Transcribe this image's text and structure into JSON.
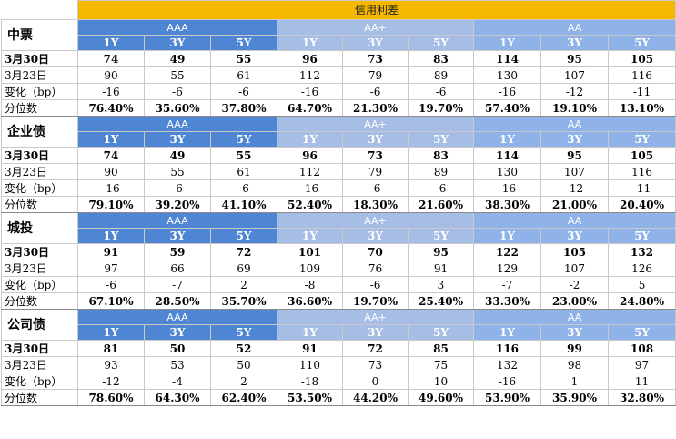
{
  "title": "信用利差",
  "ratings": [
    "AAA",
    "AA+",
    "AA"
  ],
  "tenors": [
    "1Y",
    "3Y",
    "5Y"
  ],
  "row_labels": {
    "current": "3月30日",
    "previous": "3月23日",
    "change": "变化（bp）",
    "percentile": "分位数"
  },
  "sections": [
    {
      "name": "中票",
      "current": [
        "74",
        "49",
        "55",
        "96",
        "73",
        "83",
        "114",
        "95",
        "105"
      ],
      "previous": [
        "90",
        "55",
        "61",
        "112",
        "79",
        "89",
        "130",
        "107",
        "116"
      ],
      "change": [
        "-16",
        "-6",
        "-6",
        "-16",
        "-6",
        "-6",
        "-16",
        "-12",
        "-11"
      ],
      "percentile": [
        "76.40%",
        "35.60%",
        "37.80%",
        "64.70%",
        "21.30%",
        "19.70%",
        "57.40%",
        "19.10%",
        "13.10%"
      ]
    },
    {
      "name": "企业债",
      "current": [
        "74",
        "49",
        "55",
        "96",
        "73",
        "83",
        "114",
        "95",
        "105"
      ],
      "previous": [
        "90",
        "55",
        "61",
        "112",
        "79",
        "89",
        "130",
        "107",
        "116"
      ],
      "change": [
        "-16",
        "-6",
        "-6",
        "-16",
        "-6",
        "-6",
        "-16",
        "-12",
        "-11"
      ],
      "percentile": [
        "79.10%",
        "39.20%",
        "41.10%",
        "52.40%",
        "18.30%",
        "21.60%",
        "38.30%",
        "21.00%",
        "20.40%"
      ]
    },
    {
      "name": "城投",
      "current": [
        "91",
        "59",
        "72",
        "101",
        "70",
        "95",
        "122",
        "105",
        "132"
      ],
      "previous": [
        "97",
        "66",
        "69",
        "109",
        "76",
        "91",
        "129",
        "107",
        "126"
      ],
      "change": [
        "-6",
        "-7",
        "2",
        "-8",
        "-6",
        "3",
        "-7",
        "-2",
        "5"
      ],
      "percentile": [
        "67.10%",
        "28.50%",
        "35.70%",
        "36.60%",
        "19.70%",
        "25.40%",
        "33.30%",
        "23.00%",
        "24.80%"
      ]
    },
    {
      "name": "公司债",
      "current": [
        "81",
        "50",
        "52",
        "91",
        "72",
        "85",
        "116",
        "99",
        "108"
      ],
      "previous": [
        "93",
        "53",
        "50",
        "110",
        "73",
        "75",
        "132",
        "98",
        "97"
      ],
      "change": [
        "-12",
        "-4",
        "2",
        "-18",
        "0",
        "10",
        "-16",
        "1",
        "11"
      ],
      "percentile": [
        "78.60%",
        "64.30%",
        "62.40%",
        "53.50%",
        "44.20%",
        "49.60%",
        "53.90%",
        "35.90%",
        "32.80%"
      ]
    }
  ]
}
